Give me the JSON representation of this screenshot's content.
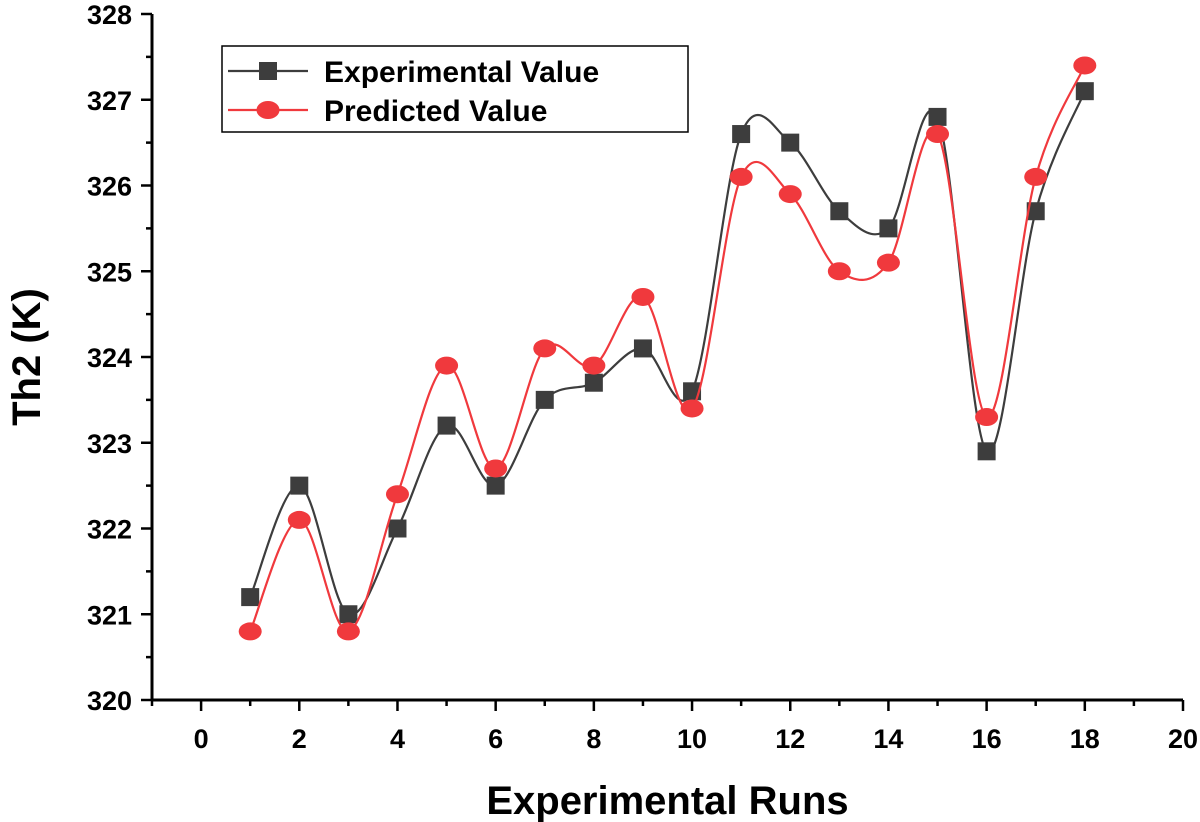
{
  "chart_data": {
    "type": "line",
    "xlabel": "Experimental Runs",
    "ylabel": "Th2 (K)",
    "xlim": [
      -1,
      20
    ],
    "ylim": [
      320,
      328
    ],
    "xticks": [
      0,
      2,
      4,
      6,
      8,
      10,
      12,
      14,
      16,
      18,
      20
    ],
    "yticks": [
      320,
      321,
      322,
      323,
      324,
      325,
      326,
      327,
      328
    ],
    "x": [
      1,
      2,
      3,
      4,
      5,
      6,
      7,
      8,
      9,
      10,
      11,
      12,
      13,
      14,
      15,
      16,
      17,
      18
    ],
    "grid": false,
    "legend_position": "top-left",
    "smooth": true,
    "series": [
      {
        "name": "Experimental Value",
        "marker": "square",
        "color": "#3d3d3d",
        "values": [
          321.2,
          322.5,
          321.0,
          322.0,
          323.2,
          322.5,
          323.5,
          323.7,
          324.1,
          323.6,
          326.6,
          326.5,
          325.7,
          325.5,
          326.8,
          322.9,
          325.7,
          327.1
        ]
      },
      {
        "name": "Predicted Value",
        "marker": "circle",
        "color": "#f0393d",
        "values": [
          320.8,
          322.1,
          320.8,
          322.4,
          323.9,
          322.7,
          324.1,
          323.9,
          324.7,
          323.4,
          326.1,
          325.9,
          325.0,
          325.1,
          326.6,
          323.3,
          326.1,
          327.4
        ]
      }
    ]
  }
}
